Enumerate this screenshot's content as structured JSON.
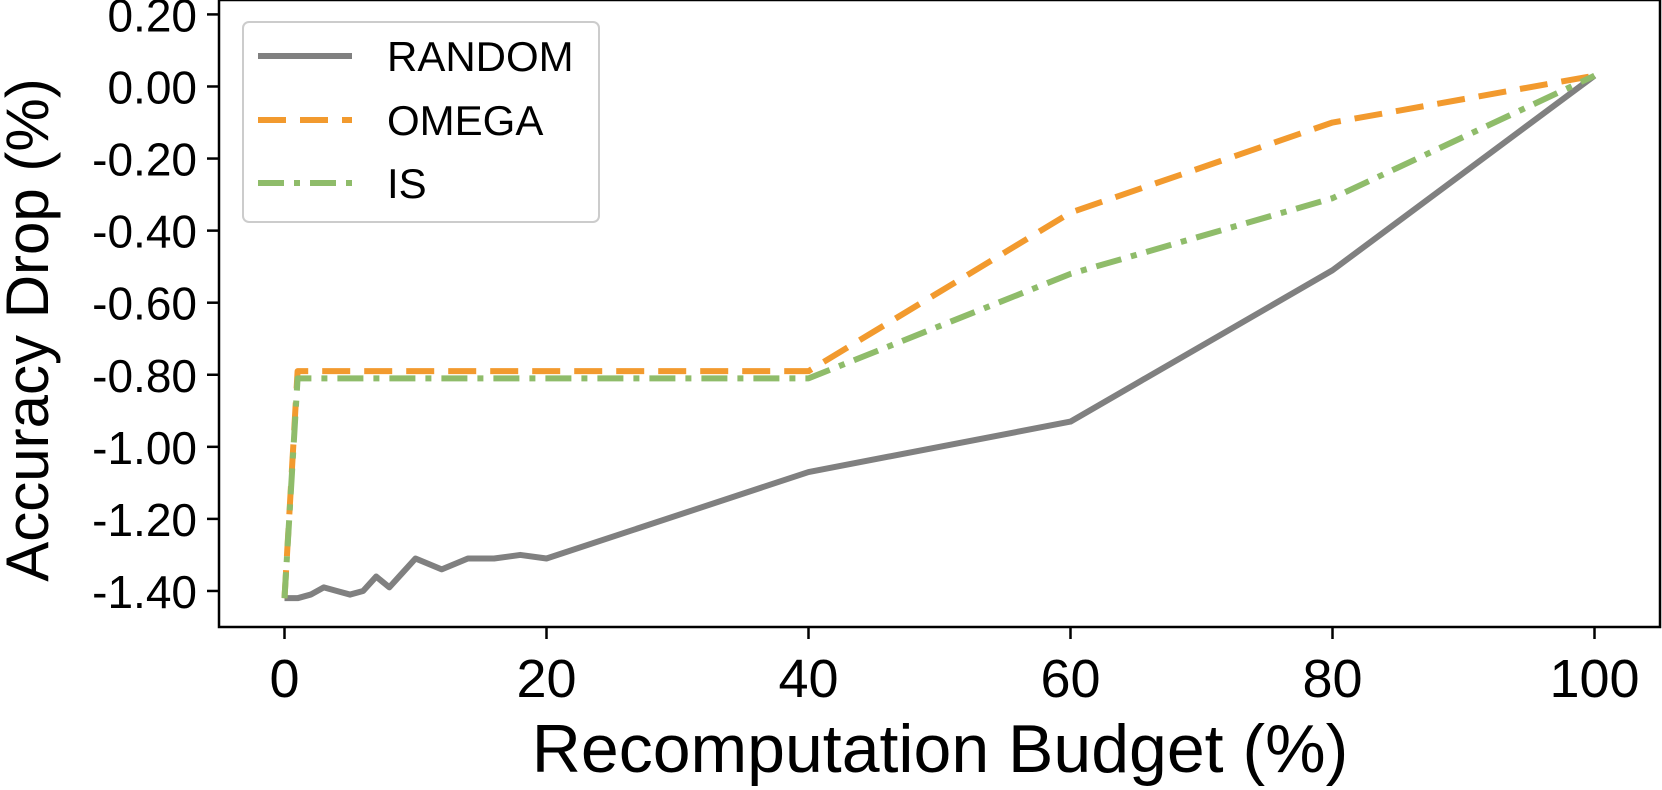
{
  "chart_data": {
    "type": "line",
    "title": "",
    "xlabel": "Recomputation Budget (%)",
    "ylabel": "Accuracy Drop (%)",
    "xlim": [
      -5,
      105
    ],
    "ylim": [
      -1.5,
      0.24
    ],
    "grid": false,
    "legend_position": "top-left",
    "x_ticks": [
      0,
      20,
      40,
      60,
      80,
      100
    ],
    "x_tick_labels": [
      "0",
      "20",
      "40",
      "60",
      "80",
      "100"
    ],
    "y_ticks": [
      0.2,
      0.0,
      -0.2,
      -0.4,
      -0.6,
      -0.8,
      -1.0,
      -1.2,
      -1.4
    ],
    "y_tick_labels": [
      "0.20",
      "0.00",
      "-0.20",
      "-0.40",
      "-0.60",
      "-0.80",
      "-1.00",
      "-1.20",
      "-1.40"
    ],
    "series": [
      {
        "name": "RANDOM",
        "color": "#808080",
        "dash": "solid",
        "x": [
          0,
          1,
          2,
          3,
          4,
          5,
          6,
          7,
          8,
          9,
          10,
          12,
          14,
          16,
          18,
          20,
          40,
          60,
          80,
          100
        ],
        "y": [
          -1.42,
          -1.42,
          -1.41,
          -1.39,
          -1.4,
          -1.41,
          -1.4,
          -1.36,
          -1.39,
          -1.35,
          -1.31,
          -1.34,
          -1.31,
          -1.31,
          -1.3,
          -1.31,
          -1.07,
          -0.93,
          -0.51,
          0.03
        ]
      },
      {
        "name": "OMEGA",
        "color": "#f29a2e",
        "dash": "dashed",
        "x": [
          0,
          1,
          20,
          40,
          60,
          80,
          100
        ],
        "y": [
          -1.42,
          -0.79,
          -0.79,
          -0.79,
          -0.35,
          -0.1,
          0.03
        ]
      },
      {
        "name": "IS",
        "color": "#8fbc6a",
        "dash": "dashdot",
        "x": [
          0,
          1,
          20,
          40,
          60,
          80,
          100
        ],
        "y": [
          -1.42,
          -0.81,
          -0.81,
          -0.81,
          -0.52,
          -0.31,
          0.03
        ]
      }
    ]
  }
}
